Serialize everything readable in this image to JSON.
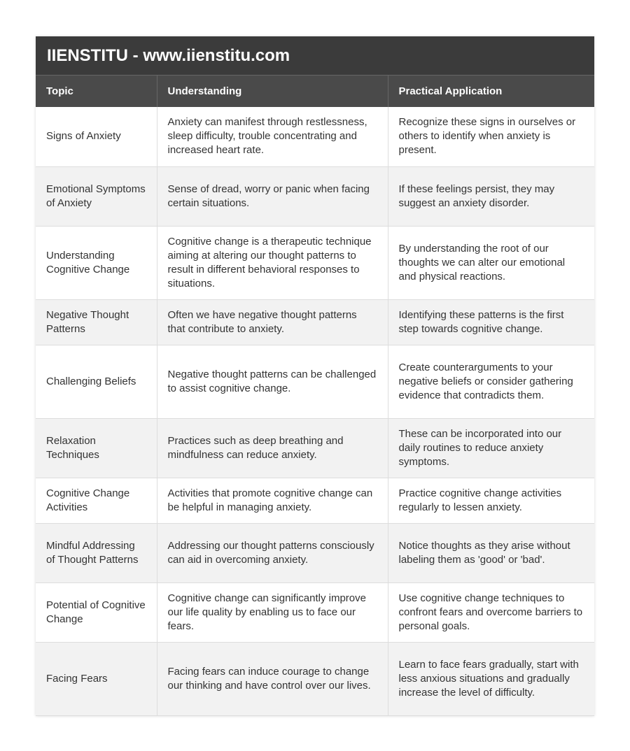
{
  "title": "IIENSTITU - www.iienstitu.com",
  "headers": [
    "Topic",
    "Understanding",
    "Practical Application"
  ],
  "rows": [
    [
      "Signs of Anxiety",
      "Anxiety can manifest through restlessness, sleep difficulty, trouble concentrating and increased heart rate.",
      "Recognize these signs in ourselves or others to identify when anxiety is present."
    ],
    [
      "Emotional Symptoms of Anxiety",
      "Sense of dread, worry or panic when facing certain situations.",
      "If these feelings persist, they may suggest an anxiety disorder."
    ],
    [
      "Understanding Cognitive Change",
      "Cognitive change is a therapeutic technique aiming at altering our thought patterns to result in different behavioral responses to situations.",
      "By understanding the root of our thoughts we can alter our emotional and physical reactions."
    ],
    [
      "Negative Thought Patterns",
      "Often we have negative thought patterns that contribute to anxiety.",
      "Identifying these patterns is the first step towards cognitive change."
    ],
    [
      "Challenging Beliefs",
      "Negative thought patterns can be challenged to assist cognitive change.",
      "Create counterarguments to your negative beliefs or consider gathering evidence that contradicts them."
    ],
    [
      "Relaxation Techniques",
      "Practices such as deep breathing and mindfulness can reduce anxiety.",
      "These can be incorporated into our daily routines to reduce anxiety symptoms."
    ],
    [
      "Cognitive Change Activities",
      "Activities that promote cognitive change can be helpful in managing anxiety.",
      "Practice cognitive change activities regularly to lessen anxiety."
    ],
    [
      "Mindful Addressing of Thought Patterns",
      "Addressing our thought patterns consciously can aid in overcoming anxiety.",
      "Notice thoughts as they arise without labeling them as 'good' or 'bad'."
    ],
    [
      "Potential of Cognitive Change",
      "Cognitive change can significantly improve our life quality by enabling us to face our fears.",
      "Use cognitive change techniques to confront fears and overcome barriers to personal goals."
    ],
    [
      "Facing Fears",
      "Facing fears can induce courage to change our thinking and have control over our lives.",
      "Learn to face fears gradually, start with less anxious situations and gradually increase the level of difficulty."
    ]
  ]
}
